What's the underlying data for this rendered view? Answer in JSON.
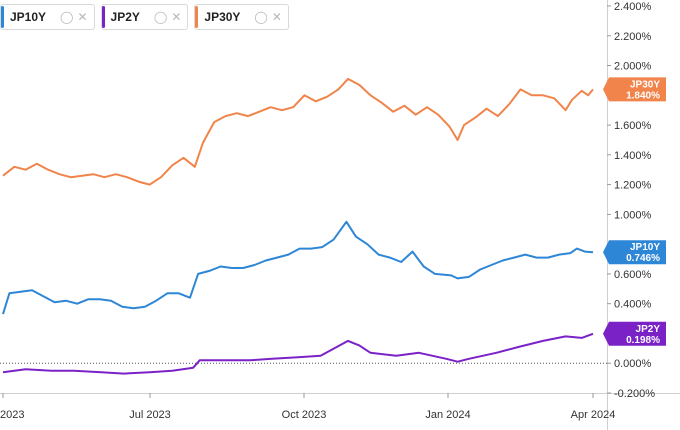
{
  "legend": [
    {
      "name": "JP10Y",
      "color": "#2e86d6"
    },
    {
      "name": "JP2Y",
      "color": "#7b22c7"
    },
    {
      "name": "JP30Y",
      "color": "#f0844a"
    }
  ],
  "icons": {
    "hide": "eye-slash-icon",
    "remove": "close-icon"
  },
  "chart_data": {
    "type": "line",
    "x_ticks": [
      "2023",
      "Jul 2023",
      "Oct 2023",
      "Jan 2024",
      "Apr 2024"
    ],
    "y_ticks": [
      "2.400%",
      "2.200%",
      "2.000%",
      "1.800%",
      "1.600%",
      "1.400%",
      "1.200%",
      "1.000%",
      "0.800%",
      "0.600%",
      "0.400%",
      "0.200%",
      "0.000%",
      "-0.200%"
    ],
    "ylim": [
      -0.2,
      2.4
    ],
    "xlim": [
      "2023-04-01",
      "2024-04-01"
    ],
    "grid": false,
    "zero_line": "dotted",
    "legend_position": "top-left",
    "series": [
      {
        "name": "JP30Y",
        "color": "#f0844a",
        "last_label": "JP30Y",
        "last_value": "1.840%",
        "values": [
          [
            "2023-04-01",
            1.26
          ],
          [
            "2023-04-08",
            1.32
          ],
          [
            "2023-04-15",
            1.3
          ],
          [
            "2023-04-22",
            1.34
          ],
          [
            "2023-04-29",
            1.3
          ],
          [
            "2023-05-06",
            1.27
          ],
          [
            "2023-05-13",
            1.25
          ],
          [
            "2023-05-20",
            1.26
          ],
          [
            "2023-05-27",
            1.27
          ],
          [
            "2023-06-03",
            1.25
          ],
          [
            "2023-06-10",
            1.27
          ],
          [
            "2023-06-17",
            1.25
          ],
          [
            "2023-06-24",
            1.22
          ],
          [
            "2023-07-01",
            1.2
          ],
          [
            "2023-07-08",
            1.25
          ],
          [
            "2023-07-15",
            1.33
          ],
          [
            "2023-07-22",
            1.38
          ],
          [
            "2023-07-29",
            1.32
          ],
          [
            "2023-08-03",
            1.48
          ],
          [
            "2023-08-10",
            1.62
          ],
          [
            "2023-08-17",
            1.66
          ],
          [
            "2023-08-24",
            1.68
          ],
          [
            "2023-08-31",
            1.66
          ],
          [
            "2023-09-07",
            1.69
          ],
          [
            "2023-09-14",
            1.72
          ],
          [
            "2023-09-21",
            1.7
          ],
          [
            "2023-09-28",
            1.72
          ],
          [
            "2023-10-05",
            1.8
          ],
          [
            "2023-10-12",
            1.76
          ],
          [
            "2023-10-19",
            1.79
          ],
          [
            "2023-10-26",
            1.84
          ],
          [
            "2023-11-01",
            1.91
          ],
          [
            "2023-11-08",
            1.87
          ],
          [
            "2023-11-15",
            1.8
          ],
          [
            "2023-11-22",
            1.75
          ],
          [
            "2023-11-29",
            1.69
          ],
          [
            "2023-12-06",
            1.73
          ],
          [
            "2023-12-13",
            1.67
          ],
          [
            "2023-12-20",
            1.72
          ],
          [
            "2023-12-27",
            1.67
          ],
          [
            "2024-01-03",
            1.59
          ],
          [
            "2024-01-08",
            1.5
          ],
          [
            "2024-01-12",
            1.6
          ],
          [
            "2024-01-19",
            1.65
          ],
          [
            "2024-01-26",
            1.71
          ],
          [
            "2024-02-02",
            1.66
          ],
          [
            "2024-02-09",
            1.74
          ],
          [
            "2024-02-16",
            1.84
          ],
          [
            "2024-02-23",
            1.8
          ],
          [
            "2024-03-01",
            1.8
          ],
          [
            "2024-03-08",
            1.78
          ],
          [
            "2024-03-15",
            1.7
          ],
          [
            "2024-03-19",
            1.77
          ],
          [
            "2024-03-25",
            1.83
          ],
          [
            "2024-03-29",
            1.8
          ],
          [
            "2024-04-01",
            1.84
          ]
        ]
      },
      {
        "name": "JP10Y",
        "color": "#2e86d6",
        "last_label": "JP10Y",
        "last_value": "0.746%",
        "values": [
          [
            "2023-04-01",
            0.33
          ],
          [
            "2023-04-05",
            0.47
          ],
          [
            "2023-04-12",
            0.48
          ],
          [
            "2023-04-19",
            0.49
          ],
          [
            "2023-04-26",
            0.45
          ],
          [
            "2023-05-03",
            0.41
          ],
          [
            "2023-05-10",
            0.42
          ],
          [
            "2023-05-17",
            0.4
          ],
          [
            "2023-05-24",
            0.43
          ],
          [
            "2023-05-31",
            0.43
          ],
          [
            "2023-06-07",
            0.42
          ],
          [
            "2023-06-14",
            0.38
          ],
          [
            "2023-06-21",
            0.37
          ],
          [
            "2023-06-28",
            0.38
          ],
          [
            "2023-07-05",
            0.42
          ],
          [
            "2023-07-12",
            0.47
          ],
          [
            "2023-07-19",
            0.47
          ],
          [
            "2023-07-26",
            0.44
          ],
          [
            "2023-07-31",
            0.6
          ],
          [
            "2023-08-07",
            0.62
          ],
          [
            "2023-08-14",
            0.65
          ],
          [
            "2023-08-21",
            0.64
          ],
          [
            "2023-08-28",
            0.64
          ],
          [
            "2023-09-04",
            0.66
          ],
          [
            "2023-09-11",
            0.69
          ],
          [
            "2023-09-18",
            0.71
          ],
          [
            "2023-09-25",
            0.73
          ],
          [
            "2023-10-02",
            0.77
          ],
          [
            "2023-10-09",
            0.77
          ],
          [
            "2023-10-16",
            0.78
          ],
          [
            "2023-10-23",
            0.83
          ],
          [
            "2023-10-31",
            0.95
          ],
          [
            "2023-11-06",
            0.85
          ],
          [
            "2023-11-13",
            0.8
          ],
          [
            "2023-11-20",
            0.73
          ],
          [
            "2023-11-27",
            0.71
          ],
          [
            "2023-12-04",
            0.68
          ],
          [
            "2023-12-11",
            0.75
          ],
          [
            "2023-12-18",
            0.65
          ],
          [
            "2023-12-25",
            0.6
          ],
          [
            "2024-01-04",
            0.59
          ],
          [
            "2024-01-08",
            0.57
          ],
          [
            "2024-01-15",
            0.58
          ],
          [
            "2024-01-22",
            0.63
          ],
          [
            "2024-01-29",
            0.66
          ],
          [
            "2024-02-05",
            0.69
          ],
          [
            "2024-02-12",
            0.71
          ],
          [
            "2024-02-19",
            0.73
          ],
          [
            "2024-02-26",
            0.71
          ],
          [
            "2024-03-04",
            0.71
          ],
          [
            "2024-03-11",
            0.73
          ],
          [
            "2024-03-18",
            0.74
          ],
          [
            "2024-03-22",
            0.77
          ],
          [
            "2024-03-27",
            0.75
          ],
          [
            "2024-04-01",
            0.746
          ]
        ]
      },
      {
        "name": "JP2Y",
        "color": "#7b22c7",
        "last_label": "JP2Y",
        "last_value": "0.198%",
        "values": [
          [
            "2023-04-01",
            -0.06
          ],
          [
            "2023-04-15",
            -0.04
          ],
          [
            "2023-05-01",
            -0.05
          ],
          [
            "2023-05-15",
            -0.05
          ],
          [
            "2023-06-01",
            -0.06
          ],
          [
            "2023-06-15",
            -0.07
          ],
          [
            "2023-07-01",
            -0.06
          ],
          [
            "2023-07-15",
            -0.05
          ],
          [
            "2023-07-28",
            -0.03
          ],
          [
            "2023-08-01",
            0.02
          ],
          [
            "2023-08-15",
            0.02
          ],
          [
            "2023-09-01",
            0.02
          ],
          [
            "2023-09-15",
            0.03
          ],
          [
            "2023-10-01",
            0.04
          ],
          [
            "2023-10-15",
            0.05
          ],
          [
            "2023-11-01",
            0.15
          ],
          [
            "2023-11-08",
            0.12
          ],
          [
            "2023-11-15",
            0.07
          ],
          [
            "2023-12-01",
            0.05
          ],
          [
            "2023-12-15",
            0.07
          ],
          [
            "2024-01-01",
            0.03
          ],
          [
            "2024-01-08",
            0.01
          ],
          [
            "2024-01-15",
            0.03
          ],
          [
            "2024-02-01",
            0.07
          ],
          [
            "2024-02-15",
            0.11
          ],
          [
            "2024-03-01",
            0.15
          ],
          [
            "2024-03-15",
            0.18
          ],
          [
            "2024-03-25",
            0.17
          ],
          [
            "2024-04-01",
            0.198
          ]
        ]
      }
    ]
  }
}
